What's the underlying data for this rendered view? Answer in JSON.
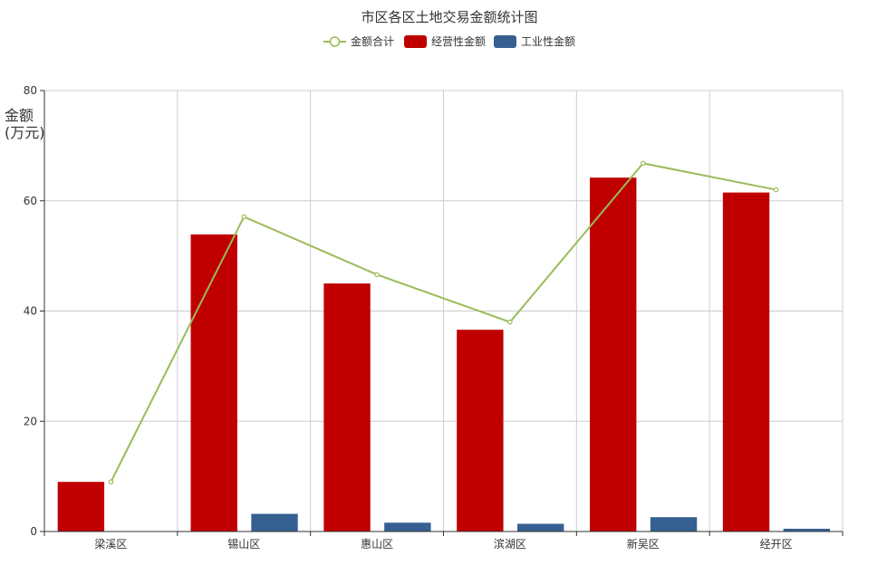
{
  "chart_data": {
    "type": "bar",
    "title": "市区各区土地交易金额统计图",
    "ylabel_lines": [
      "金额",
      "(万元)"
    ],
    "xlabel": "",
    "categories": [
      "梁溪区",
      "锡山区",
      "惠山区",
      "滨湖区",
      "新吴区",
      "经开区"
    ],
    "ylim": [
      0,
      80
    ],
    "yticks": [
      0,
      20,
      40,
      60,
      80
    ],
    "grid": true,
    "legend_position": "top-center",
    "series": [
      {
        "name": "金额合计",
        "kind": "line",
        "color": "#9bbb59",
        "values": [
          9.0,
          57.1,
          46.6,
          38.0,
          66.8,
          62.0
        ]
      },
      {
        "name": "经营性金额",
        "kind": "bar",
        "color": "#c00000",
        "values": [
          9.0,
          53.9,
          45.0,
          36.6,
          64.2,
          61.5
        ]
      },
      {
        "name": "工业性金额",
        "kind": "bar",
        "color": "#376092",
        "values": [
          0,
          3.2,
          1.6,
          1.4,
          2.6,
          0.5
        ]
      }
    ]
  }
}
